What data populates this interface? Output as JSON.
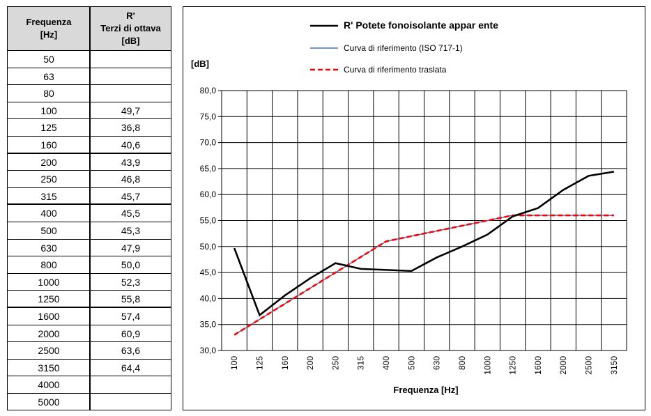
{
  "table": {
    "header_freq": "Frequenza\n[Hz]",
    "header_r": "R'\nTerzi di ottava\n[dB]",
    "rows": [
      {
        "f": "50",
        "r": ""
      },
      {
        "f": "63",
        "r": ""
      },
      {
        "f": "80",
        "r": ""
      },
      {
        "f": "100",
        "r": "49,7"
      },
      {
        "f": "125",
        "r": "36,8"
      },
      {
        "f": "160",
        "r": "40,6"
      },
      {
        "f": "200",
        "r": "43,9"
      },
      {
        "f": "250",
        "r": "46,8"
      },
      {
        "f": "315",
        "r": "45,7"
      },
      {
        "f": "400",
        "r": "45,5"
      },
      {
        "f": "500",
        "r": "45,3"
      },
      {
        "f": "630",
        "r": "47,9"
      },
      {
        "f": "800",
        "r": "50,0"
      },
      {
        "f": "1000",
        "r": "52,3"
      },
      {
        "f": "1250",
        "r": "55,8"
      },
      {
        "f": "1600",
        "r": "57,4"
      },
      {
        "f": "2000",
        "r": "60,9"
      },
      {
        "f": "2500",
        "r": "63,6"
      },
      {
        "f": "3150",
        "r": "64,4"
      },
      {
        "f": "4000",
        "r": ""
      },
      {
        "f": "5000",
        "r": ""
      }
    ]
  },
  "chart_data": {
    "type": "line",
    "ylabel": "[dB]",
    "xlabel": "Frequenza [Hz]",
    "categories": [
      "100",
      "125",
      "160",
      "200",
      "250",
      "315",
      "400",
      "500",
      "630",
      "800",
      "1000",
      "1250",
      "1600",
      "2000",
      "2500",
      "3150"
    ],
    "ylim": [
      30,
      80
    ],
    "yticks": [
      "30,0",
      "35,0",
      "40,0",
      "45,0",
      "50,0",
      "55,0",
      "60,0",
      "65,0",
      "70,0",
      "75,0",
      "80,0"
    ],
    "grid": true,
    "legend_position": "top",
    "series": [
      {
        "name": "R' Potete fonoisolante appar ente",
        "color": "#000000",
        "style": "solid-thick",
        "values": [
          49.7,
          36.8,
          40.6,
          43.9,
          46.8,
          45.7,
          45.5,
          45.3,
          47.9,
          50.0,
          52.3,
          55.8,
          57.4,
          60.9,
          63.6,
          64.4
        ]
      },
      {
        "name": "Curva di riferimento (ISO 717-1)",
        "color": "#4a6fb0",
        "style": "solid-thin",
        "values": [
          33,
          36,
          39,
          42,
          45,
          48,
          51,
          52,
          53,
          54,
          55,
          56,
          56,
          56,
          56,
          56
        ]
      },
      {
        "name": "Curva di riferimento traslata",
        "color": "#ff0000",
        "style": "dashed",
        "values": [
          33,
          36,
          39,
          42,
          45,
          48,
          51,
          52,
          53,
          54,
          55,
          56,
          56,
          56,
          56,
          56
        ]
      }
    ]
  }
}
